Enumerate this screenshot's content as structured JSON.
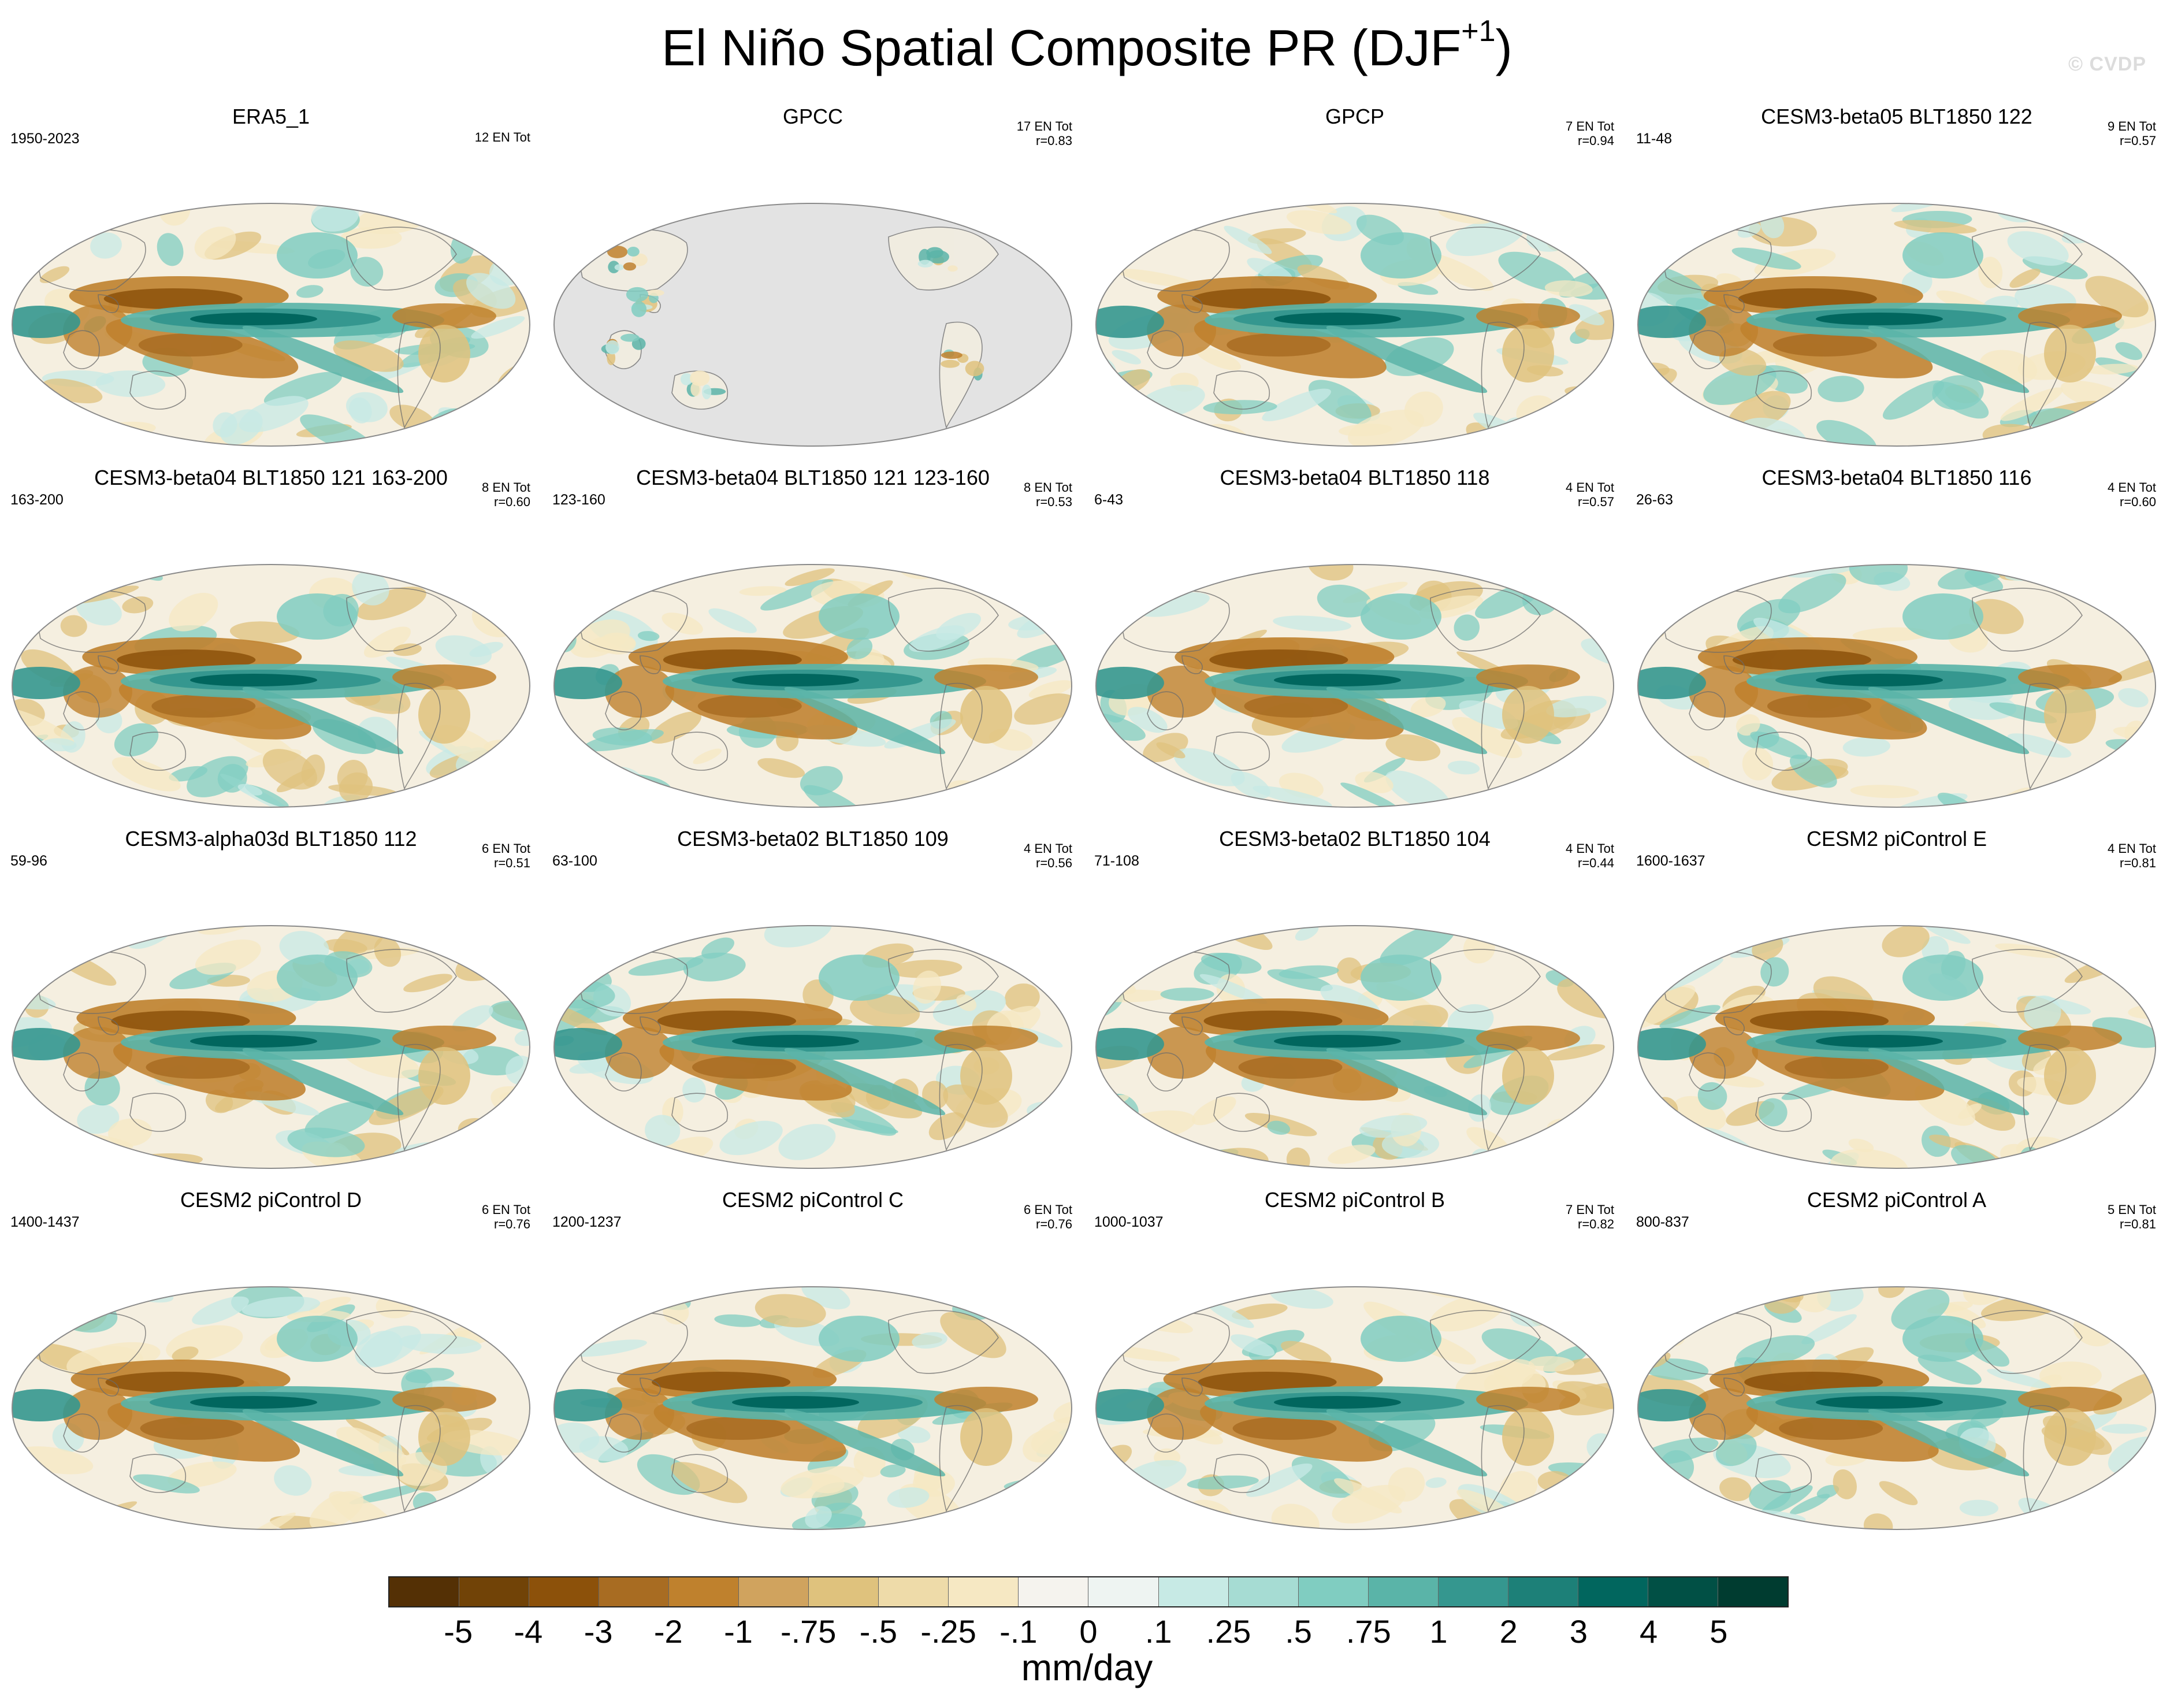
{
  "figure": {
    "title": "El Niño Spatial Composite PR (DJF",
    "title_sup": "+1",
    "title_close": ")",
    "watermark": "© CVDP"
  },
  "panels": [
    {
      "title": "ERA5_1",
      "years": "1950-2023",
      "stats": [
        "12 EN Tot"
      ],
      "variant": 0
    },
    {
      "title": "GPCC",
      "years": "",
      "stats": [
        "17 EN Tot",
        "r=0.83"
      ],
      "variant": -1
    },
    {
      "title": "GPCP",
      "years": "",
      "stats": [
        "7 EN Tot",
        "r=0.94"
      ],
      "variant": 1
    },
    {
      "title": "CESM3-beta05 BLT1850 122",
      "years": "11-48",
      "stats": [
        "9 EN Tot",
        "r=0.57"
      ],
      "variant": 2
    },
    {
      "title": "CESM3-beta04 BLT1850 121 163-200",
      "years": "163-200",
      "stats": [
        "8 EN Tot",
        "r=0.60"
      ],
      "variant": 3
    },
    {
      "title": "CESM3-beta04 BLT1850 121 123-160",
      "years": "123-160",
      "stats": [
        "8 EN Tot",
        "r=0.53"
      ],
      "variant": 4
    },
    {
      "title": "CESM3-beta04 BLT1850 118",
      "years": "6-43",
      "stats": [
        "4 EN Tot",
        "r=0.57"
      ],
      "variant": 5
    },
    {
      "title": "CESM3-beta04 BLT1850 116",
      "years": "26-63",
      "stats": [
        "4 EN Tot",
        "r=0.60"
      ],
      "variant": 6
    },
    {
      "title": "CESM3-alpha03d BLT1850 112",
      "years": "59-96",
      "stats": [
        "6 EN Tot",
        "r=0.51"
      ],
      "variant": 7
    },
    {
      "title": "CESM3-beta02 BLT1850 109",
      "years": "63-100",
      "stats": [
        "4 EN Tot",
        "r=0.56"
      ],
      "variant": 8
    },
    {
      "title": "CESM3-beta02 BLT1850 104",
      "years": "71-108",
      "stats": [
        "4 EN Tot",
        "r=0.44"
      ],
      "variant": 9
    },
    {
      "title": "CESM2 piControl E",
      "years": "1600-1637",
      "stats": [
        "4 EN Tot",
        "r=0.81"
      ],
      "variant": 10
    },
    {
      "title": "CESM2 piControl D",
      "years": "1400-1437",
      "stats": [
        "6 EN Tot",
        "r=0.76"
      ],
      "variant": 11
    },
    {
      "title": "CESM2 piControl C",
      "years": "1200-1237",
      "stats": [
        "6 EN Tot",
        "r=0.76"
      ],
      "variant": 12
    },
    {
      "title": "CESM2 piControl B",
      "years": "1000-1037",
      "stats": [
        "7 EN Tot",
        "r=0.82"
      ],
      "variant": 13
    },
    {
      "title": "CESM2 piControl A",
      "years": "800-837",
      "stats": [
        "5 EN Tot",
        "r=0.81"
      ],
      "variant": 14
    }
  ],
  "colorbar": {
    "colors": [
      "#543005",
      "#714307",
      "#8c510a",
      "#a86c22",
      "#bf812d",
      "#d0a35e",
      "#dfc27d",
      "#eedba9",
      "#f6e8c3",
      "#f5f3ee",
      "#eef4f2",
      "#c7eae5",
      "#a6dcd3",
      "#80cdc1",
      "#5ab4a8",
      "#35978f",
      "#1d8078",
      "#01665e",
      "#015045",
      "#003c30"
    ],
    "labels": [
      "-5",
      "-4",
      "-3",
      "-2",
      "-1",
      "-.75",
      "-.5",
      "-.25",
      "-.1",
      "0",
      ".1",
      ".25",
      ".5",
      ".75",
      "1",
      "2",
      "3",
      "4",
      "5"
    ],
    "units": "mm/day"
  }
}
